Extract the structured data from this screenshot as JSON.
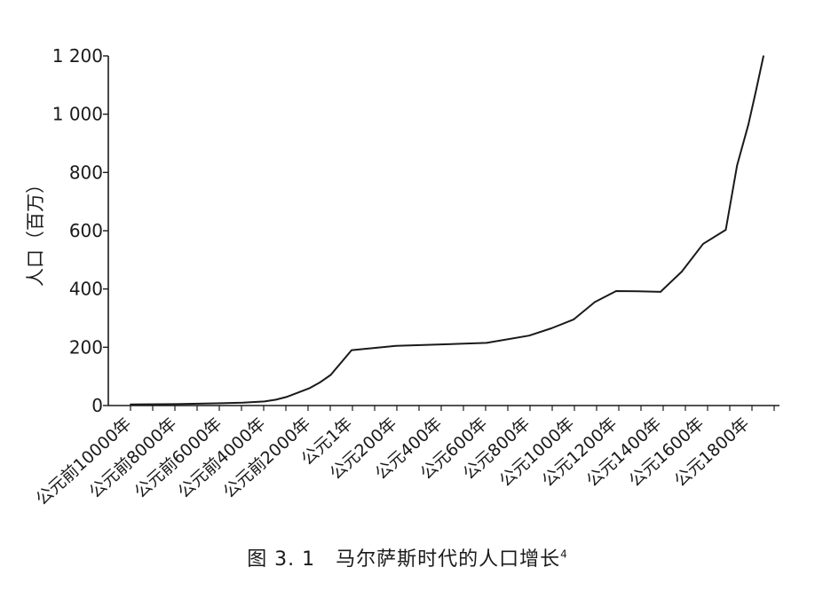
{
  "chart_data": {
    "type": "line",
    "ylabel": "人口（百万）",
    "ylim": [
      0,
      1200
    ],
    "yticks": [
      0,
      200,
      400,
      600,
      800,
      1000,
      1200
    ],
    "ytick_labels": [
      "0",
      "200",
      "400",
      "600",
      "800",
      "1 000",
      "1 200"
    ],
    "xtick_labels": [
      "公元前10000年",
      "公元前8000年",
      "公元前6000年",
      "公元前4000年",
      "公元前2000年",
      "公元1年",
      "公元200年",
      "公元400年",
      "公元600年",
      "公元800年",
      "公元1000年",
      "公元1200年",
      "公元1400年",
      "公元1600年",
      "公元1800年"
    ],
    "series": [
      {
        "values": [
          {
            "x": "公元前10000年",
            "y": 4
          },
          {
            "x": "公元前8000年",
            "y": 5
          },
          {
            "x": "公元前6000年",
            "y": 8
          },
          {
            "x": "公元前5000年",
            "y": 10
          },
          {
            "x": "公元前4000年",
            "y": 14
          },
          {
            "x": "公元前3500年",
            "y": 20
          },
          {
            "x": "公元前3000年",
            "y": 30
          },
          {
            "x": "公元前2500年",
            "y": 45
          },
          {
            "x": "公元前2000年",
            "y": 60
          },
          {
            "x": "公元前1500年",
            "y": 80
          },
          {
            "x": "公元前1000年",
            "y": 105
          },
          {
            "x": "公元1年",
            "y": 190
          },
          {
            "x": "公元200年",
            "y": 205
          },
          {
            "x": "公元400年",
            "y": 210
          },
          {
            "x": "公元600年",
            "y": 215
          },
          {
            "x": "公元800年",
            "y": 240
          },
          {
            "x": "公元900年",
            "y": 265
          },
          {
            "x": "公元1000年",
            "y": 295
          },
          {
            "x": "公元1100年",
            "y": 355
          },
          {
            "x": "公元1200年",
            "y": 393
          },
          {
            "x": "公元1300年",
            "y": 392
          },
          {
            "x": "公元1400年",
            "y": 390
          },
          {
            "x": "公元1500年",
            "y": 460
          },
          {
            "x": "公元1600年",
            "y": 555
          },
          {
            "x": "公元1700年",
            "y": 603
          },
          {
            "x": "公元1750年",
            "y": 825
          },
          {
            "x": "公元1800年",
            "y": 965
          },
          {
            "x": "公元1850年",
            "y": 1080
          },
          {
            "x": "公元1900年",
            "y": 1200
          }
        ]
      }
    ]
  },
  "caption": {
    "text": "图 3. 1　马尔萨斯时代的人口增长",
    "footnote": "4"
  }
}
